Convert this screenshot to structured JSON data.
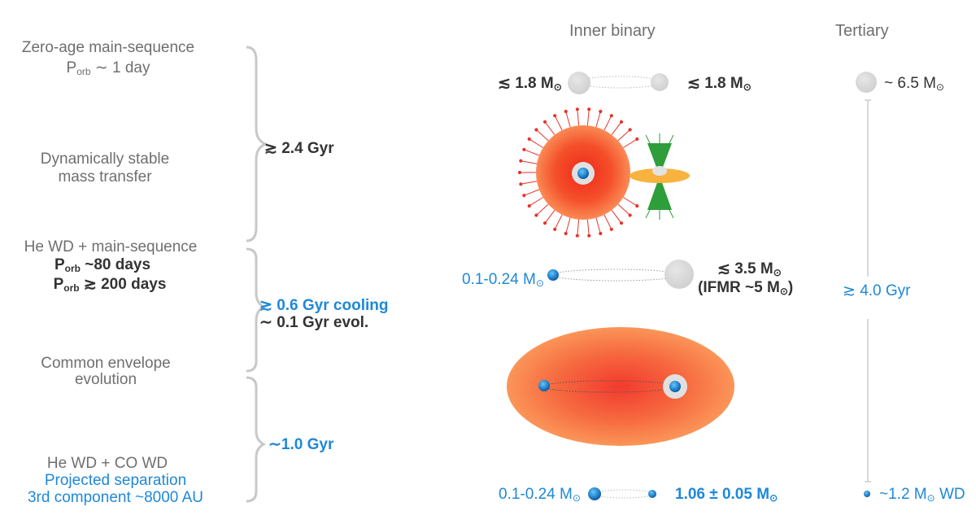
{
  "headers": {
    "inner": "Inner binary",
    "tertiary": "Tertiary"
  },
  "stages": {
    "zams": {
      "line1": "Zero-age main-sequence",
      "porb_prefix": "P",
      "porb_sub": "orb",
      "porb_value": " ∼ 1 day"
    },
    "stable_mt": {
      "line1": "Dynamically stable",
      "line2": "mass transfer"
    },
    "hewd_ms": {
      "line1": "He WD + main-sequence",
      "p1_prefix": "P",
      "p1_sub": "orb",
      "p1_value": " ~80 days",
      "p2_prefix": "P",
      "p2_sub": "orb",
      "p2_value": " ≳ 200 days"
    },
    "ce": {
      "line1": "Common envelope",
      "line2": "evolution"
    },
    "final": {
      "line1": "He WD + CO WD",
      "line2": "Projected separation",
      "line3": "3rd component ~8000 AU"
    }
  },
  "durations": {
    "d1": "≳ 2.4 Gyr",
    "d2a": "≳ 0.6 Gyr cooling",
    "d2b": "∼ 0.1 Gyr evol.",
    "d3": "∼1.0 Gyr"
  },
  "inner_masses": {
    "row1_left": "≲ 1.8 M",
    "row1_right": "≲ 1.8 M",
    "row3_left": "0.1-0.24 M",
    "row3_right": "≲ 3.5 M",
    "row3_ifmr": "(IFMR ~5 M",
    "row3_ifmr_close": ")",
    "row5_left": "0.1-0.24 M",
    "row5_right": "1.06 ± 0.05 M",
    "sun_symbol": "⊙"
  },
  "tertiary": {
    "mass_top": "~ 6.5 M",
    "age": "≳ 4.0 Gyr",
    "mass_bottom": "~1.2 M",
    "mass_bottom_suffix": " WD",
    "sun_symbol": "⊙"
  },
  "colors": {
    "gray_text": "#6f6f6f",
    "dark_text": "#333333",
    "blue": "#1e88d8",
    "star_gray": "#d9d9d9",
    "giant_red": "#f03a1c",
    "giant_orange": "#fb7a4a",
    "disk_orange": "#f8b23e",
    "jet_green": "#2e9e3a"
  }
}
